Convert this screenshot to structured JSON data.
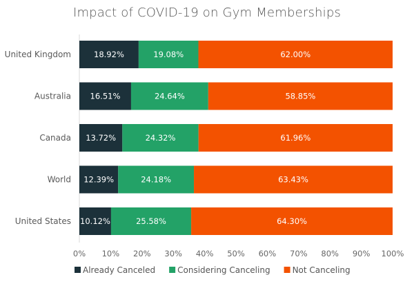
{
  "chart_data": {
    "type": "bar",
    "orientation": "horizontal",
    "stacked": true,
    "title": "Impact of COVID-19 on Gym Memberships",
    "xlabel": "",
    "ylabel": "",
    "xlim": [
      0,
      100
    ],
    "x_ticks": [
      "0%",
      "10%",
      "20%",
      "30%",
      "40%",
      "50%",
      "60%",
      "70%",
      "80%",
      "90%",
      "100%"
    ],
    "grid": false,
    "legend_position": "bottom",
    "categories": [
      "United Kingdom",
      "Australia",
      "Canada",
      "World",
      "United States"
    ],
    "series": [
      {
        "name": "Already Canceled",
        "color": "#1c313a",
        "values": [
          18.92,
          16.51,
          13.72,
          12.39,
          10.12
        ],
        "labels": [
          "18.92%",
          "16.51%",
          "13.72%",
          "12.39%",
          "10.12%"
        ]
      },
      {
        "name": "Considering Canceling",
        "color": "#23a267",
        "values": [
          19.08,
          24.64,
          24.32,
          24.18,
          25.58
        ],
        "labels": [
          "19.08%",
          "24.64%",
          "24.32%",
          "24.18%",
          "25.58%"
        ]
      },
      {
        "name": "Not Canceling",
        "color": "#f35200",
        "values": [
          62.0,
          58.85,
          61.96,
          63.43,
          64.3
        ],
        "labels": [
          "62.00%",
          "58.85%",
          "61.96%",
          "63.43%",
          "64.30%"
        ]
      }
    ]
  }
}
